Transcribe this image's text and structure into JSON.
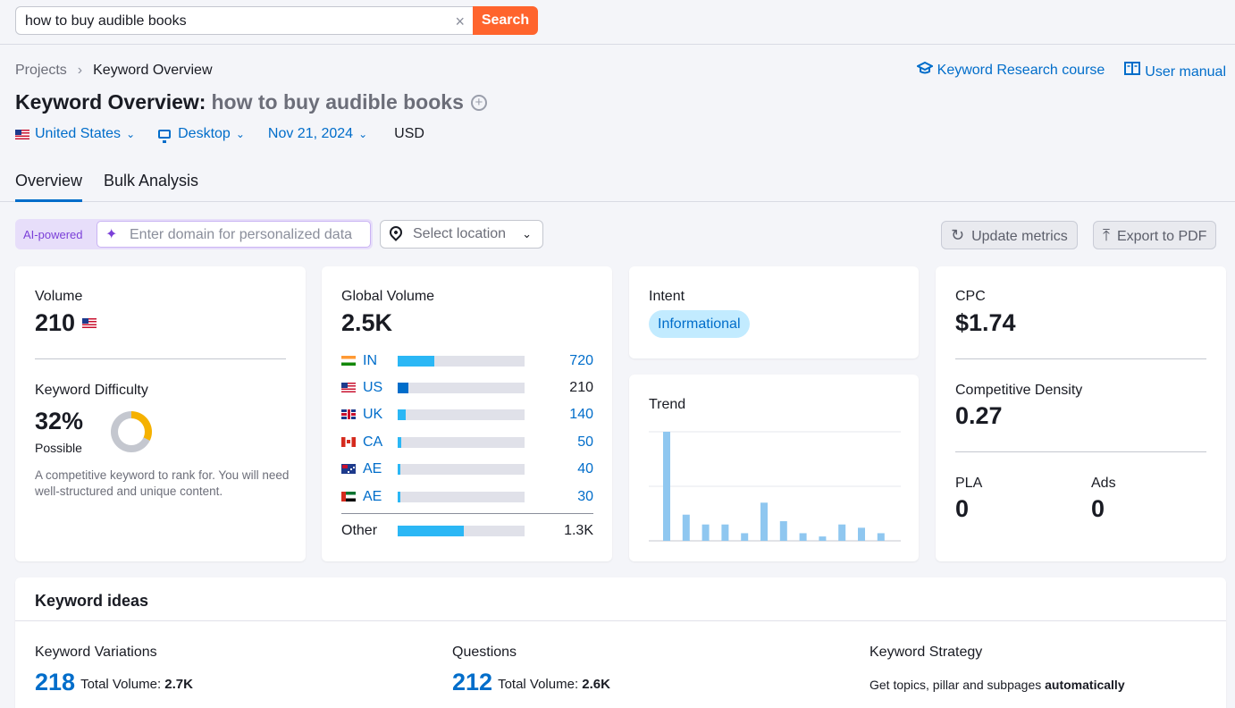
{
  "search": {
    "query": "how to buy audible books",
    "clear_label": "×",
    "button_label": "Search"
  },
  "breadcrumb": {
    "parent": "Projects",
    "separator": "›",
    "current": "Keyword Overview"
  },
  "links": {
    "course": "Keyword Research course",
    "manual": "User manual"
  },
  "title": {
    "prefix": "Keyword Overview:",
    "keyword": "how to buy audible books",
    "add_symbol": "+"
  },
  "filters": {
    "country": "United States",
    "device": "Desktop",
    "date": "Nov 21, 2024",
    "currency": "USD"
  },
  "tabs": [
    {
      "label": "Overview",
      "active": true
    },
    {
      "label": "Bulk Analysis",
      "active": false
    }
  ],
  "toolbar": {
    "ai_label": "AI-powered",
    "domain_placeholder": "Enter domain for personalized data",
    "location_label": "Select location",
    "update_label": "Update metrics",
    "export_label": "Export to PDF"
  },
  "volume": {
    "label": "Volume",
    "value": "210"
  },
  "keyword_difficulty": {
    "label": "Keyword Difficulty",
    "value": "32%",
    "percent": 32,
    "rating": "Possible",
    "description": "A competitive keyword to rank for. You will need well-structured and unique content."
  },
  "global_volume": {
    "label": "Global Volume",
    "value": "2.5K",
    "rows": [
      {
        "code": "IN",
        "flag": "in",
        "value": "720",
        "fraction": 0.29,
        "highlight": false
      },
      {
        "code": "US",
        "flag": "us",
        "value": "210",
        "fraction": 0.085,
        "highlight": true
      },
      {
        "code": "UK",
        "flag": "gb",
        "value": "140",
        "fraction": 0.06,
        "highlight": false
      },
      {
        "code": "CA",
        "flag": "ca",
        "value": "50",
        "fraction": 0.025,
        "highlight": false
      },
      {
        "code": "AE",
        "flag": "au",
        "value": "40",
        "fraction": 0.022,
        "highlight": false
      },
      {
        "code": "AE",
        "flag": "ae",
        "value": "30",
        "fraction": 0.02,
        "highlight": false
      }
    ],
    "other": {
      "label": "Other",
      "value": "1.3K",
      "fraction": 0.52
    }
  },
  "intent": {
    "label": "Intent",
    "badge": "Informational"
  },
  "trend": {
    "label": "Trend",
    "values": [
      100,
      24,
      15,
      15,
      7,
      35,
      18,
      7,
      4,
      15,
      12,
      7
    ]
  },
  "cpc": {
    "label": "CPC",
    "value": "$1.74"
  },
  "competitive_density": {
    "label": "Competitive Density",
    "value": "0.27"
  },
  "pla": {
    "label": "PLA",
    "value": "0"
  },
  "ads": {
    "label": "Ads",
    "value": "0"
  },
  "keyword_ideas": {
    "title": "Keyword ideas",
    "variations": {
      "label": "Keyword Variations",
      "count": "218",
      "total_label": "Total Volume:",
      "total": "2.7K"
    },
    "questions": {
      "label": "Questions",
      "count": "212",
      "total_label": "Total Volume:",
      "total": "2.6K"
    },
    "strategy": {
      "label": "Keyword Strategy",
      "text": "Get topics, pillar and subpages",
      "emphasis": "automatically"
    }
  },
  "colors": {
    "accent": "#006dca",
    "search_button": "#ff642d",
    "bar": "#2bb7f5",
    "trend_bar": "#8fc7f0",
    "kd_ring": "#f5b100",
    "ai_purple": "#7b40d8"
  }
}
